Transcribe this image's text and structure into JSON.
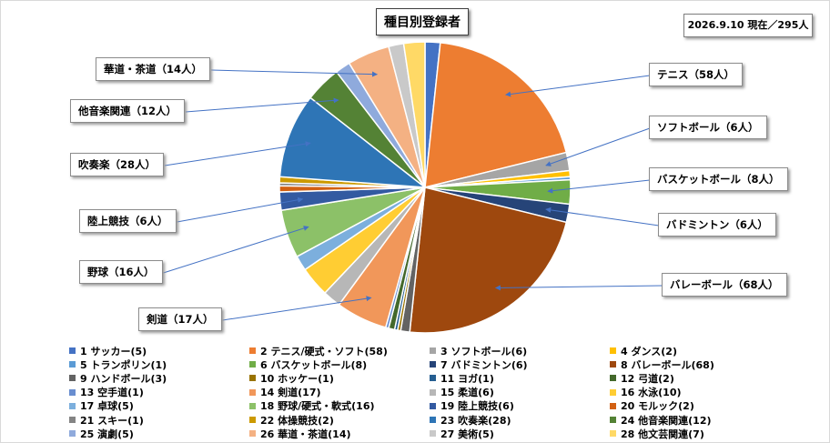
{
  "title": "種目別登録者",
  "date_note": "2026.9.10 現在／295人",
  "callouts": [
    {
      "id": "c-kado",
      "label": "華道・茶道（14人）",
      "slice": 26
    },
    {
      "id": "c-tabunka",
      "label": "他音楽関連（12人）",
      "slice": 24
    },
    {
      "id": "c-suisou",
      "label": "吹奏楽（28人）",
      "slice": 23
    },
    {
      "id": "c-rikujo",
      "label": "陸上競技（6人）",
      "slice": 19
    },
    {
      "id": "c-yakyu",
      "label": "野球（16人）",
      "slice": 18
    },
    {
      "id": "c-kendo",
      "label": "剣道（17人）",
      "slice": 14
    },
    {
      "id": "c-tennis",
      "label": "テニス（58人）",
      "slice": 2
    },
    {
      "id": "c-soft",
      "label": "ソフトボール（6人）",
      "slice": 3
    },
    {
      "id": "c-basket",
      "label": "バスケットボール（8人）",
      "slice": 6
    },
    {
      "id": "c-badminton",
      "label": "バドミントン（6人）",
      "slice": 7
    },
    {
      "id": "c-volley",
      "label": "バレーボール（68人）",
      "slice": 8
    }
  ],
  "chart_data": {
    "type": "pie",
    "title": "種目別登録者",
    "total_label": "295人",
    "categories": [
      "1 サッカー(5)",
      "2 テニス/硬式・ソフト(58)",
      "3 ソフトボール(6)",
      "4 ダンス(2)",
      "5 トランポリン(1)",
      "6 バスケットボール(8)",
      "7 バドミントン(6)",
      "8 バレーボール(68)",
      "9 ハンドボール(3)",
      "10 ホッケー(1)",
      "11 ヨガ(1)",
      "12 弓道(2)",
      "13 空手道(1)",
      "14 剣道(17)",
      "15 柔道(6)",
      "16 水泳(10)",
      "17 卓球(5)",
      "18 野球/硬式・軟式(16)",
      "19 陸上競技(6)",
      "20 モルック(2)",
      "21 スキー(1)",
      "22 体操競技(2)",
      "23 吹奏楽(28)",
      "24 他音楽関連(12)",
      "25 演劇(5)",
      "26 華道・茶道(14)",
      "27 美術(5)",
      "28 他文芸関連(7)"
    ],
    "values": [
      5,
      58,
      6,
      2,
      1,
      8,
      6,
      68,
      3,
      1,
      1,
      2,
      1,
      17,
      6,
      10,
      5,
      16,
      6,
      2,
      1,
      2,
      28,
      12,
      5,
      14,
      5,
      7
    ],
    "colors": [
      "#4472c4",
      "#ed7d31",
      "#a5a5a5",
      "#ffc000",
      "#5b9bd5",
      "#70ad47",
      "#264478",
      "#9e480e",
      "#636363",
      "#997300",
      "#255e91",
      "#43682b",
      "#698ed0",
      "#f1975a",
      "#b7b7b7",
      "#ffcd33",
      "#7cafdd",
      "#8cc168",
      "#335aa1",
      "#d26012",
      "#848484",
      "#cc9a00",
      "#2e75b6",
      "#548235",
      "#8faadc",
      "#f4b183",
      "#c9c9c9",
      "#ffd966"
    ]
  }
}
